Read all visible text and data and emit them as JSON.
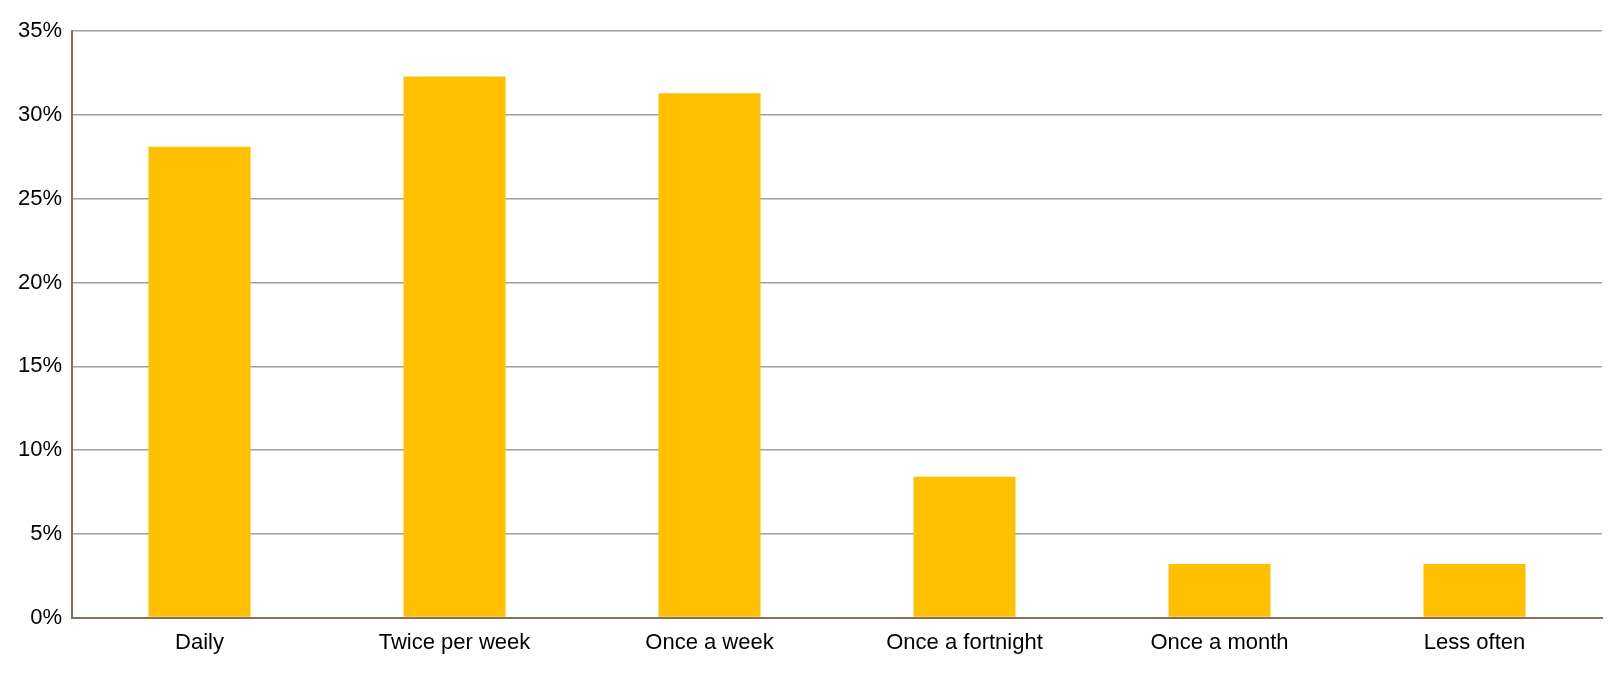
{
  "chart_data": {
    "type": "bar",
    "categories": [
      "Daily",
      "Twice per week",
      "Once a week",
      "Once a fortnight",
      "Once a month",
      "Less often"
    ],
    "values": [
      28.1,
      32.3,
      31.3,
      8.4,
      3.2,
      3.2
    ],
    "color": "#ffc000",
    "ylim": [
      0,
      35
    ],
    "yticks": [
      {
        "value": 0,
        "label": "0%"
      },
      {
        "value": 5,
        "label": "5%"
      },
      {
        "value": 10,
        "label": "10%"
      },
      {
        "value": 15,
        "label": "15%"
      },
      {
        "value": 20,
        "label": "20%"
      },
      {
        "value": 25,
        "label": "25%"
      },
      {
        "value": 30,
        "label": "30%"
      },
      {
        "value": 35,
        "label": "35%"
      }
    ],
    "grid": "y",
    "legend": false
  }
}
